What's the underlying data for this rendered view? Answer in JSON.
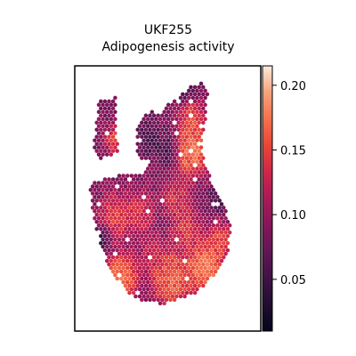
{
  "chart_data": {
    "type": "heatmap",
    "title_line1": "UKF255",
    "title_line2": "Adipogenesis activity",
    "colormap": "rocket",
    "colorbar": {
      "range": [
        0.01,
        0.215
      ],
      "ticks": [
        0.05,
        0.1,
        0.15,
        0.2
      ],
      "tick_labels": [
        "0.05",
        "0.10",
        "0.15",
        "0.20"
      ]
    },
    "regions": [
      {
        "name": "left-lobe",
        "polygon": [
          [
            0.13,
            0.13
          ],
          [
            0.22,
            0.12
          ],
          [
            0.23,
            0.33
          ],
          [
            0.14,
            0.35
          ],
          [
            0.1,
            0.3
          ]
        ]
      },
      {
        "name": "main-body",
        "polygon": [
          [
            0.17,
            0.42
          ],
          [
            0.38,
            0.4
          ],
          [
            0.48,
            0.15
          ],
          [
            0.56,
            0.12
          ],
          [
            0.62,
            0.08
          ],
          [
            0.69,
            0.06
          ],
          [
            0.72,
            0.12
          ],
          [
            0.68,
            0.3
          ],
          [
            0.7,
            0.38
          ],
          [
            0.8,
            0.52
          ],
          [
            0.84,
            0.6
          ],
          [
            0.82,
            0.72
          ],
          [
            0.68,
            0.85
          ],
          [
            0.48,
            0.9
          ],
          [
            0.32,
            0.88
          ],
          [
            0.2,
            0.78
          ],
          [
            0.15,
            0.7
          ],
          [
            0.1,
            0.58
          ],
          [
            0.08,
            0.45
          ]
        ]
      },
      {
        "name": "upper-mid",
        "polygon": [
          [
            0.33,
            0.23
          ],
          [
            0.4,
            0.17
          ],
          [
            0.48,
            0.18
          ],
          [
            0.46,
            0.34
          ],
          [
            0.38,
            0.36
          ],
          [
            0.33,
            0.33
          ]
        ]
      }
    ],
    "hotspots": [
      {
        "x": 0.22,
        "y": 0.28,
        "value": 0.17,
        "r": 0.04
      },
      {
        "x": 0.63,
        "y": 0.32,
        "value": 0.2,
        "r": 0.07
      },
      {
        "x": 0.63,
        "y": 0.2,
        "value": 0.17,
        "r": 0.05
      },
      {
        "x": 0.55,
        "y": 0.5,
        "value": 0.15,
        "r": 0.06
      },
      {
        "x": 0.22,
        "y": 0.57,
        "value": 0.16,
        "r": 0.07
      },
      {
        "x": 0.35,
        "y": 0.55,
        "value": 0.15,
        "r": 0.06
      },
      {
        "x": 0.6,
        "y": 0.62,
        "value": 0.16,
        "r": 0.06
      },
      {
        "x": 0.25,
        "y": 0.8,
        "value": 0.2,
        "r": 0.07
      },
      {
        "x": 0.52,
        "y": 0.8,
        "value": 0.19,
        "r": 0.08
      },
      {
        "x": 0.7,
        "y": 0.76,
        "value": 0.21,
        "r": 0.07
      },
      {
        "x": 0.78,
        "y": 0.66,
        "value": 0.17,
        "r": 0.05
      },
      {
        "x": 0.42,
        "y": 0.7,
        "value": 0.14,
        "r": 0.05
      },
      {
        "x": 0.58,
        "y": 0.05,
        "value": 0.03,
        "r": 0.05
      },
      {
        "x": 0.4,
        "y": 0.28,
        "value": 0.05,
        "r": 0.05
      },
      {
        "x": 0.78,
        "y": 0.5,
        "value": 0.05,
        "r": 0.04
      },
      {
        "x": 0.14,
        "y": 0.65,
        "value": 0.04,
        "r": 0.04
      },
      {
        "x": 0.5,
        "y": 0.32,
        "value": 0.05,
        "r": 0.04
      }
    ],
    "base_value": 0.09
  }
}
